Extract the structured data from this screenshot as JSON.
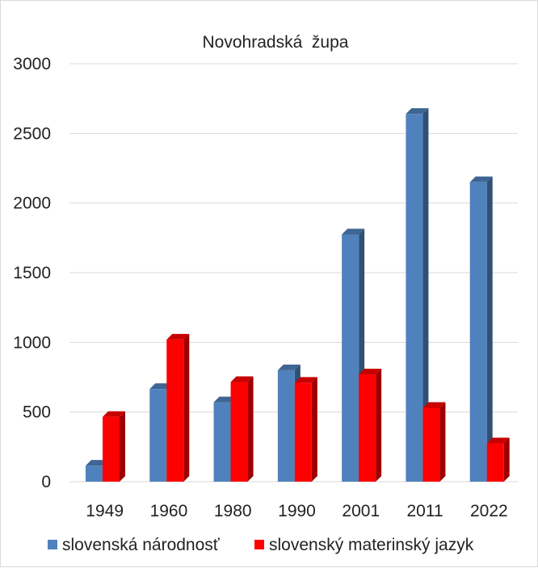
{
  "chart_data": {
    "type": "bar",
    "title": "Novohradská  župa",
    "xlabel": "",
    "ylabel": "",
    "categories": [
      "1949",
      "1960",
      "1980",
      "1990",
      "2001",
      "2011",
      "2022"
    ],
    "series": [
      {
        "name": "slovenská národnosť",
        "color": "#4f81bd",
        "values": [
          115,
          665,
          570,
          800,
          1775,
          2640,
          2150
        ]
      },
      {
        "name": "slovenský materinský jazyk",
        "color": "#ff0000",
        "values": [
          465,
          1020,
          715,
          710,
          770,
          530,
          275
        ]
      }
    ],
    "ylim": [
      0,
      3000
    ],
    "yticks": [
      "0",
      "500",
      "1000",
      "1500",
      "2000",
      "2500",
      "3000"
    ],
    "grid": true,
    "legend_position": "bottom",
    "style": "3d-column"
  }
}
